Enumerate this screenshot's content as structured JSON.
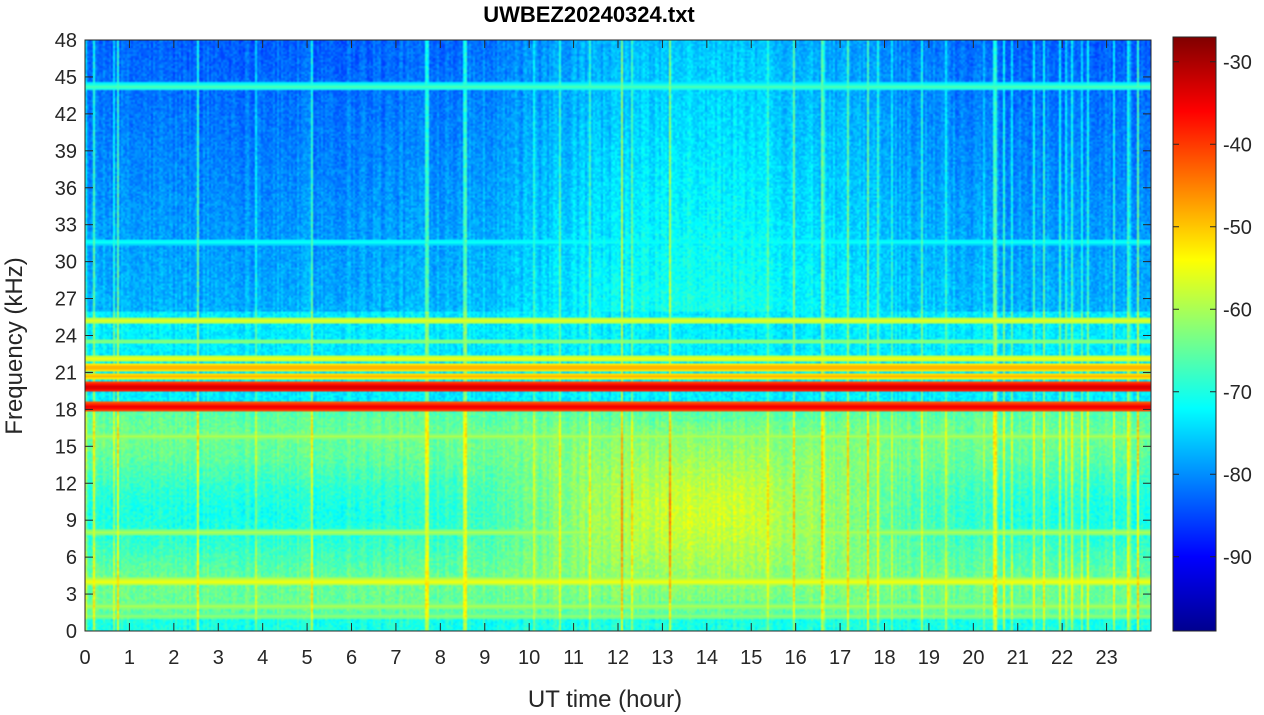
{
  "chart_data": {
    "type": "heatmap",
    "title": "UWBEZ20240324.txt",
    "xlabel": "UT time (hour)",
    "ylabel": "Frequency (kHz)",
    "xlim": [
      0,
      24
    ],
    "ylim": [
      0,
      48
    ],
    "x_ticks": [
      "0",
      "1",
      "2",
      "3",
      "4",
      "5",
      "6",
      "7",
      "8",
      "9",
      "10",
      "11",
      "12",
      "13",
      "14",
      "15",
      "16",
      "17",
      "18",
      "19",
      "20",
      "21",
      "22",
      "23"
    ],
    "y_ticks": [
      "0",
      "3",
      "6",
      "9",
      "12",
      "15",
      "18",
      "21",
      "24",
      "27",
      "30",
      "33",
      "36",
      "39",
      "42",
      "45",
      "48"
    ],
    "colorbar": {
      "colormap": "jet",
      "range": [
        -99,
        -27
      ],
      "ticks": [
        "-90",
        "-80",
        "-70",
        "-60",
        "-50",
        "-40",
        "-30"
      ]
    },
    "features": {
      "transmitter_lines_khz": [
        19.8,
        18.2,
        21.4,
        22.1,
        25.2,
        4.0,
        44.2,
        31.6
      ],
      "broadband_activity_hours": [
        8,
        20
      ],
      "broadband_activity_khz": [
        3,
        16
      ]
    }
  }
}
